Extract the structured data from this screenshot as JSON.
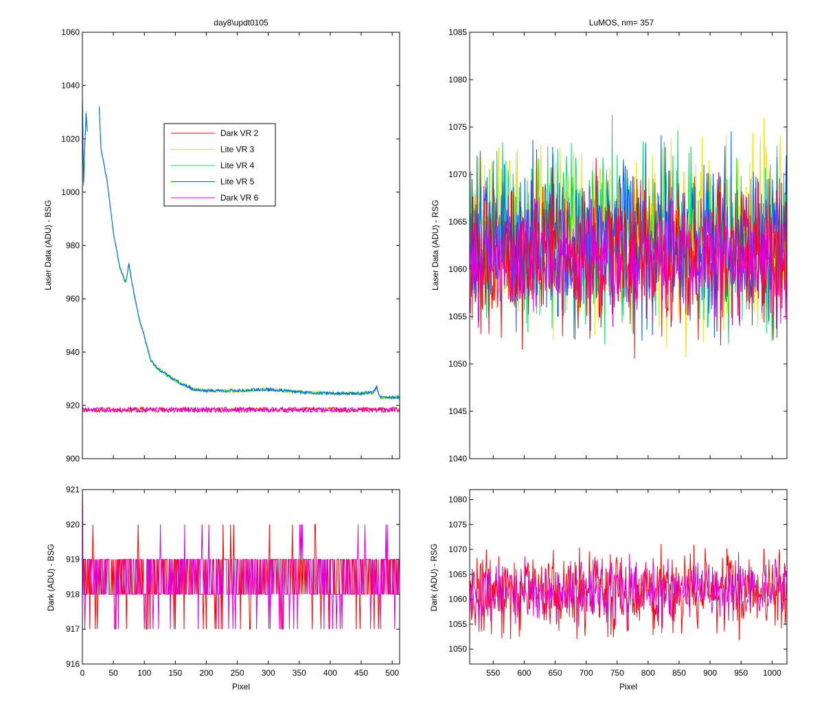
{
  "chart_data": [
    {
      "id": "top_left",
      "type": "line",
      "title": "day8\\updt0105",
      "xlabel": "",
      "ylabel": "Laser Data (ADU) - BSG",
      "xlim": [
        0,
        512
      ],
      "ylim": [
        900,
        1060
      ],
      "xticks": [
        0,
        50,
        100,
        150,
        200,
        250,
        300,
        350,
        400,
        450,
        500
      ],
      "yticks": [
        900,
        920,
        940,
        960,
        980,
        1000,
        1020,
        1040,
        1060
      ],
      "show_xtick_labels": false,
      "legend": {
        "placement": "upper-center"
      },
      "series": [
        {
          "name": "Dark VR 2",
          "color": "#ff0000",
          "kind": "dark_flat",
          "base": 918.4,
          "amp": 1.2,
          "seed": 11
        },
        {
          "name": "Lite VR 3",
          "color": "#e6e600",
          "kind": "lite_curve",
          "noise": 0.6,
          "seed": 21
        },
        {
          "name": "Lite VR 4",
          "color": "#00e060",
          "kind": "lite_curve",
          "noise": 0.6,
          "seed": 31
        },
        {
          "name": "Lite VR 5",
          "color": "#0055ff",
          "kind": "lite_curve",
          "noise": 0.6,
          "seed": 41
        },
        {
          "name": "Dark VR 6",
          "color": "#dd00dd",
          "kind": "dark_flat",
          "base": 918.3,
          "amp": 1.2,
          "seed": 51
        }
      ],
      "lite_profile": {
        "x": [
          0,
          2,
          4,
          6,
          8,
          10,
          12,
          20,
          26,
          30,
          40,
          50,
          60,
          70,
          75,
          80,
          90,
          100,
          110,
          120,
          140,
          160,
          180,
          200,
          250,
          300,
          350,
          400,
          450,
          470,
          475,
          480,
          512
        ],
        "y": [
          1035,
          1003,
          1018,
          1030,
          1023,
          null,
          null,
          null,
          1037,
          1016,
          1004,
          985,
          972,
          966,
          973,
          966,
          954,
          946,
          937,
          934,
          931,
          928,
          926,
          925.5,
          925.5,
          926,
          925,
          924.5,
          924.5,
          925,
          927,
          923,
          923
        ]
      }
    },
    {
      "id": "top_right",
      "type": "line",
      "title": "LuMOS, nm= 357",
      "xlabel": "",
      "ylabel": "Laser Data (ADU) - RSG",
      "xlim": [
        512,
        1024
      ],
      "ylim": [
        1040,
        1085
      ],
      "xticks": [
        550,
        600,
        650,
        700,
        750,
        800,
        850,
        900,
        950,
        1000
      ],
      "yticks": [
        1040,
        1045,
        1050,
        1055,
        1060,
        1065,
        1070,
        1075,
        1080,
        1085
      ],
      "show_xtick_labels": false,
      "series": [
        {
          "name": "Lite VR 3",
          "color": "#e6e600",
          "kind": "noise",
          "base": 1063.5,
          "amp": 4.5,
          "seed": 61
        },
        {
          "name": "Lite VR 4",
          "color": "#00e060",
          "kind": "noise",
          "base": 1063.5,
          "amp": 4.5,
          "seed": 71
        },
        {
          "name": "Lite VR 5",
          "color": "#0055ff",
          "kind": "noise",
          "base": 1063.0,
          "amp": 4.5,
          "seed": 81
        },
        {
          "name": "Dark VR 2",
          "color": "#ff0000",
          "kind": "noise",
          "base": 1061.5,
          "amp": 4.0,
          "seed": 91
        },
        {
          "name": "Dark VR 6",
          "color": "#dd00dd",
          "kind": "noise",
          "base": 1061.5,
          "amp": 3.0,
          "seed": 101
        }
      ]
    },
    {
      "id": "bottom_left",
      "type": "line",
      "title": "",
      "xlabel": "Pixel",
      "ylabel": "Dark (ADU) - BSG",
      "xlim": [
        0,
        512
      ],
      "ylim": [
        916,
        921
      ],
      "xticks": [
        0,
        50,
        100,
        150,
        200,
        250,
        300,
        350,
        400,
        450,
        500
      ],
      "yticks": [
        916,
        917,
        918,
        919,
        920,
        921
      ],
      "show_xtick_labels": true,
      "series": [
        {
          "name": "Dark VR 2",
          "color": "#ff0000",
          "kind": "integer_noise",
          "seed": 111
        },
        {
          "name": "Dark VR 6",
          "color": "#dd00dd",
          "kind": "integer_noise",
          "seed": 121
        }
      ]
    },
    {
      "id": "bottom_right",
      "type": "line",
      "title": "",
      "xlabel": "Pixel",
      "ylabel": "Dark (ADU) - RSG",
      "xlim": [
        512,
        1024
      ],
      "ylim": [
        1047,
        1082
      ],
      "xticks": [
        550,
        600,
        650,
        700,
        750,
        800,
        850,
        900,
        950,
        1000
      ],
      "yticks": [
        1050,
        1055,
        1060,
        1065,
        1070,
        1075,
        1080
      ],
      "show_xtick_labels": true,
      "series": [
        {
          "name": "Dark VR 2",
          "color": "#ff0000",
          "kind": "noise",
          "base": 1061.5,
          "amp": 4.0,
          "seed": 131
        },
        {
          "name": "Dark VR 6",
          "color": "#dd00dd",
          "kind": "noise",
          "base": 1061.5,
          "amp": 3.0,
          "seed": 141
        }
      ]
    }
  ]
}
